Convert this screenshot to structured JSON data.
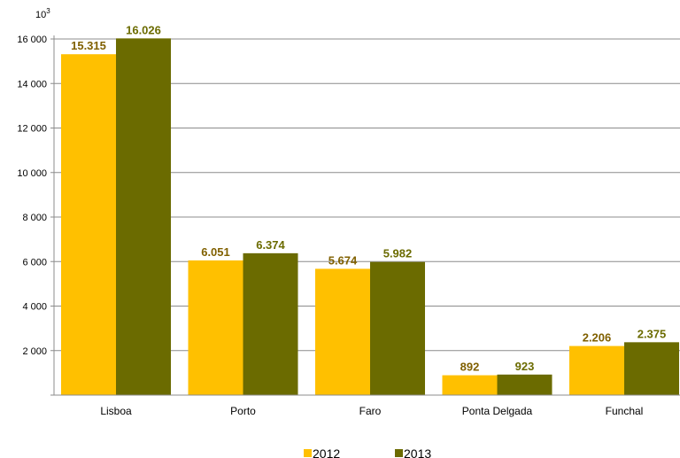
{
  "chart_data": {
    "type": "bar",
    "unit_label": "10³",
    "categories": [
      "Lisboa",
      "Porto",
      "Faro",
      "Ponta Delgada",
      "Funchal"
    ],
    "series": [
      {
        "name": "2012",
        "values": [
          15315,
          6051,
          5674,
          892,
          2206
        ],
        "labels": [
          "15.315",
          "6.051",
          "5.674",
          "892",
          "2.206"
        ],
        "color": "#FFC000",
        "label_color": "#806000"
      },
      {
        "name": "2013",
        "values": [
          16026,
          6374,
          5982,
          923,
          2375
        ],
        "labels": [
          "16.026",
          "6.374",
          "5.982",
          "923",
          "2.375"
        ],
        "color": "#6B6B00",
        "label_color": "#6B6B00"
      }
    ],
    "yticks": [
      "2 000",
      "4 000",
      "6 000",
      "8 000",
      "10 000",
      "12 000",
      "14 000",
      "16 000"
    ],
    "ylim": [
      0,
      16000
    ],
    "grid": true,
    "legend_position": "bottom"
  }
}
